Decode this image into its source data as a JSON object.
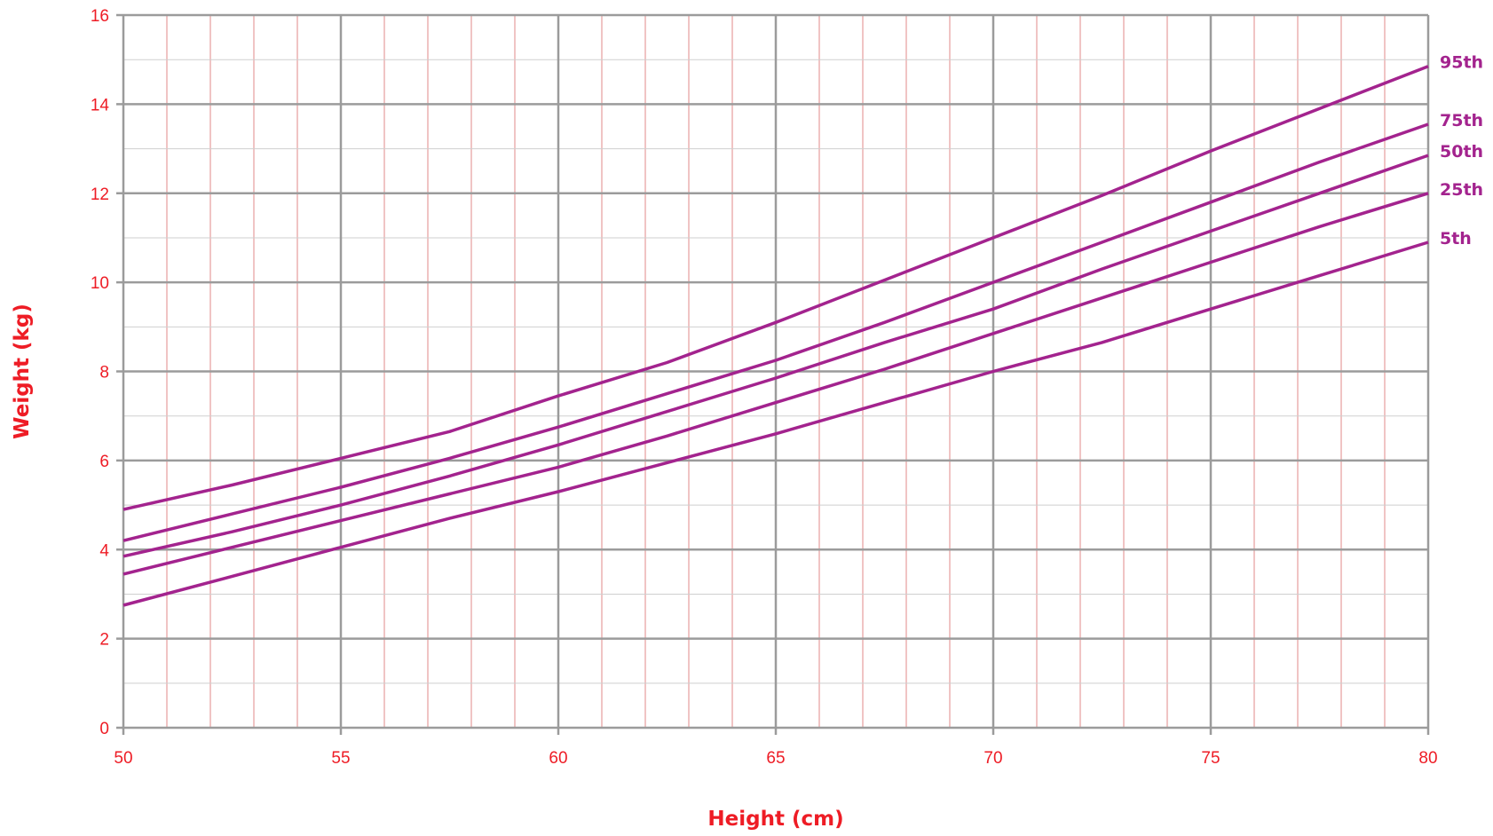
{
  "chart_data": {
    "type": "line",
    "title": "",
    "xlabel": "Height (cm)",
    "ylabel": "Weight (kg)",
    "xlim": [
      50,
      80
    ],
    "ylim": [
      0,
      16
    ],
    "x_ticks": [
      50,
      55,
      60,
      65,
      70,
      75,
      80
    ],
    "y_ticks": [
      0,
      2,
      4,
      6,
      8,
      10,
      12,
      14,
      16
    ],
    "grid": true,
    "legend": "right-end labels",
    "colors": {
      "series": "#a3238e",
      "text": "#ee1c25",
      "major_grid": "#9b9b9b",
      "minor_grid_x": "#e08a8a",
      "minor_grid_y": "#cfcfcf"
    },
    "x": [
      50,
      52.5,
      55,
      57.5,
      60,
      62.5,
      65,
      67.5,
      70,
      72.5,
      75,
      77.5,
      80
    ],
    "series": [
      {
        "name": "95th",
        "values": [
          4.9,
          5.45,
          6.05,
          6.65,
          7.45,
          8.2,
          9.1,
          10.05,
          11.0,
          11.95,
          12.95,
          13.9,
          14.85
        ]
      },
      {
        "name": "75th",
        "values": [
          4.2,
          4.8,
          5.4,
          6.05,
          6.75,
          7.5,
          8.25,
          9.1,
          10.0,
          10.9,
          11.8,
          12.7,
          13.55
        ]
      },
      {
        "name": "50th",
        "values": [
          3.85,
          4.4,
          5.0,
          5.65,
          6.35,
          7.1,
          7.85,
          8.65,
          9.4,
          10.3,
          11.15,
          12.0,
          12.85
        ]
      },
      {
        "name": "25th",
        "values": [
          3.45,
          4.05,
          4.65,
          5.25,
          5.85,
          6.55,
          7.3,
          8.05,
          8.85,
          9.65,
          10.45,
          11.25,
          12.0
        ]
      },
      {
        "name": "5th",
        "values": [
          2.75,
          3.4,
          4.05,
          4.7,
          5.3,
          5.95,
          6.6,
          7.3,
          8.0,
          8.65,
          9.4,
          10.15,
          10.9
        ]
      }
    ]
  }
}
